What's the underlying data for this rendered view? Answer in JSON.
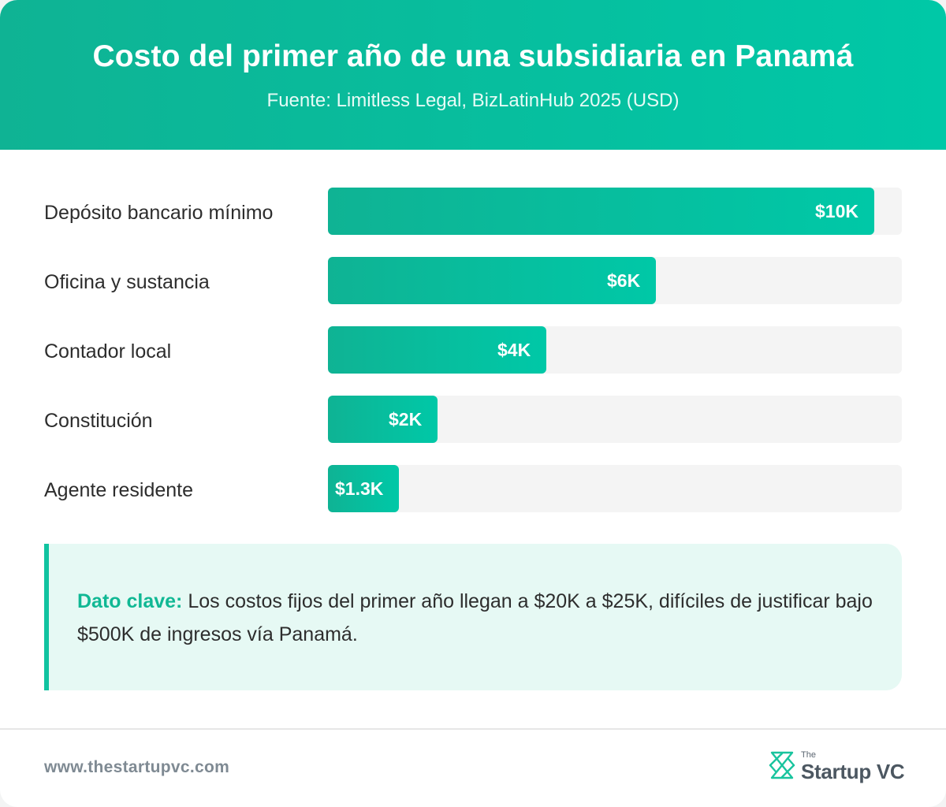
{
  "header": {
    "title": "Costo del primer año de una subsidiaria en Panamá",
    "subtitle": "Fuente: Limitless Legal, BizLatinHub 2025 (USD)"
  },
  "chart_data": {
    "type": "bar",
    "orientation": "horizontal",
    "title": "Costo del primer año de una subsidiaria en Panamá",
    "subtitle": "Fuente: Limitless Legal, BizLatinHub 2025 (USD)",
    "categories": [
      "Depósito bancario mínimo",
      "Oficina y sustancia",
      "Contador local",
      "Constitución",
      "Agente residente"
    ],
    "values": [
      10000,
      6000,
      4000,
      2000,
      1300
    ],
    "value_labels": [
      "$10K",
      "$6K",
      "$4K",
      "$2K",
      "$1.3K"
    ],
    "xlim": [
      0,
      10500
    ],
    "unit": "USD",
    "colors": {
      "bar_start": "#0fb394",
      "bar_end": "#00c8a7",
      "track": "#f4f4f4"
    }
  },
  "callout": {
    "key_label": "Dato clave:",
    "text": " Los costos fijos del primer año llegan a $20K a $25K, difíciles de justificar bajo $500K de ingresos vía Panamá."
  },
  "footer": {
    "url": "www.thestartupvc.com",
    "logo_small": "The",
    "logo_name": "Startup VC",
    "logo_icon": "startupvc-logo-icon"
  },
  "colors": {
    "accent": "#10c3a0",
    "callout_bg": "#e6f9f4",
    "text": "#2d2d2d"
  }
}
